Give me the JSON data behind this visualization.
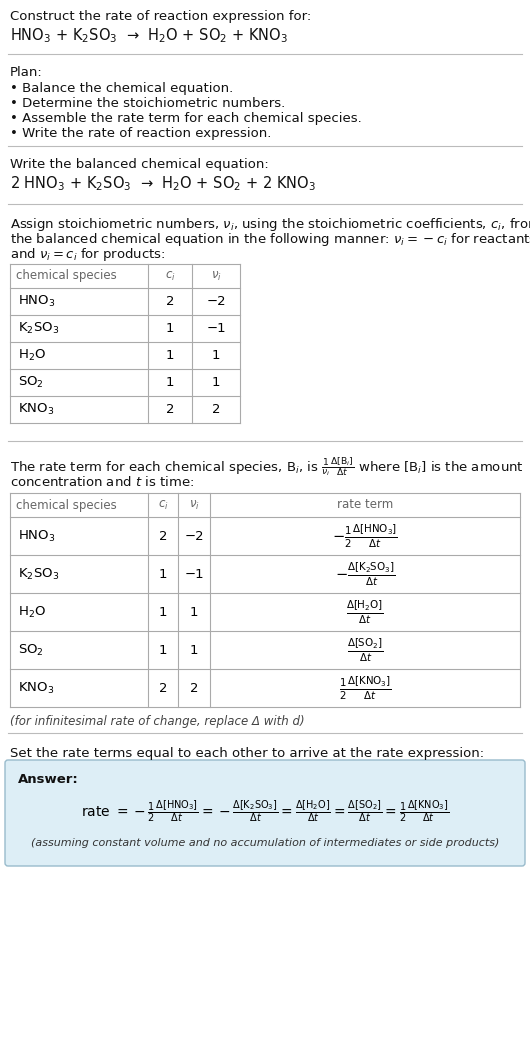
{
  "bg_color": "#ffffff",
  "title_text": "Construct the rate of reaction expression for:",
  "reaction_unbalanced": "HNO$_3$ + K$_2$SO$_3$  →  H$_2$O + SO$_2$ + KNO$_3$",
  "plan_header": "Plan:",
  "plan_items": [
    "• Balance the chemical equation.",
    "• Determine the stoichiometric numbers.",
    "• Assemble the rate term for each chemical species.",
    "• Write the rate of reaction expression."
  ],
  "balanced_header": "Write the balanced chemical equation:",
  "reaction_balanced": "2 HNO$_3$ + K$_2$SO$_3$  →  H$_2$O + SO$_2$ + 2 KNO$_3$",
  "stoich_line1": "Assign stoichiometric numbers, $\\nu_i$, using the stoichiometric coefficients, $c_i$, from",
  "stoich_line2": "the balanced chemical equation in the following manner: $\\nu_i = -c_i$ for reactants",
  "stoich_line3": "and $\\nu_i = c_i$ for products:",
  "table1_cols": [
    "chemical species",
    "$c_i$",
    "$\\nu_i$"
  ],
  "table1_rows": [
    [
      "HNO$_3$",
      "2",
      "−2"
    ],
    [
      "K$_2$SO$_3$",
      "1",
      "−1"
    ],
    [
      "H$_2$O",
      "1",
      "1"
    ],
    [
      "SO$_2$",
      "1",
      "1"
    ],
    [
      "KNO$_3$",
      "2",
      "2"
    ]
  ],
  "rate_line1": "The rate term for each chemical species, B$_i$, is $\\frac{1}{\\nu_i}\\frac{\\Delta[\\mathrm{B}_i]}{\\Delta t}$ where [B$_i$] is the amount",
  "rate_line2": "concentration and $t$ is time:",
  "table2_cols": [
    "chemical species",
    "$c_i$",
    "$\\nu_i$",
    "rate term"
  ],
  "table2_rows": [
    [
      "HNO$_3$",
      "2",
      "−2",
      "$-\\frac{1}{2}\\frac{\\Delta[\\mathrm{HNO_3}]}{\\Delta t}$"
    ],
    [
      "K$_2$SO$_3$",
      "1",
      "−1",
      "$-\\frac{\\Delta[\\mathrm{K_2SO_3}]}{\\Delta t}$"
    ],
    [
      "H$_2$O",
      "1",
      "1",
      "$\\frac{\\Delta[\\mathrm{H_2O}]}{\\Delta t}$"
    ],
    [
      "SO$_2$",
      "1",
      "1",
      "$\\frac{\\Delta[\\mathrm{SO_2}]}{\\Delta t}$"
    ],
    [
      "KNO$_3$",
      "2",
      "2",
      "$\\frac{1}{2}\\frac{\\Delta[\\mathrm{KNO_3}]}{\\Delta t}$"
    ]
  ],
  "infinitesimal_note": "(for infinitesimal rate of change, replace Δ with d)",
  "set_equal_text": "Set the rate terms equal to each other to arrive at the rate expression:",
  "answer_label": "Answer:",
  "rate_expr": "rate $= -\\frac{1}{2}\\frac{\\Delta[\\mathrm{HNO_3}]}{\\Delta t} = -\\frac{\\Delta[\\mathrm{K_2SO_3}]}{\\Delta t} = \\frac{\\Delta[\\mathrm{H_2O}]}{\\Delta t} = \\frac{\\Delta[\\mathrm{SO_2}]}{\\Delta t} = \\frac{1}{2}\\frac{\\Delta[\\mathrm{KNO_3}]}{\\Delta t}$",
  "assuming_note": "(assuming constant volume and no accumulation of intermediates or side products)",
  "font_size": 9.5,
  "font_size_small": 8.5,
  "font_size_reaction": 10.5,
  "line_color": "#bbbbbb",
  "table_line_color": "#aaaaaa",
  "header_color": "#666666",
  "answer_bg": "#ddeef6",
  "answer_border": "#99bbcc"
}
